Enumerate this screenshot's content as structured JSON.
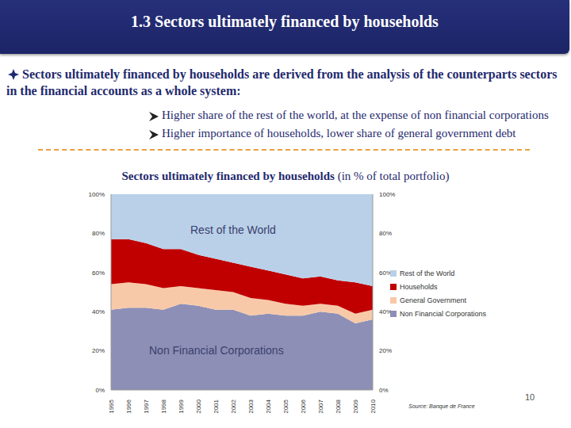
{
  "header": {
    "title": "1.3 Sectors ultimately financed by households"
  },
  "intro": "Sectors ultimately financed by households are derived from the analysis of the counterparts sectors in the financial accounts as a whole system:",
  "bullets": [
    "Higher share of the rest of the world, at the expense of non financial corporations",
    "Higher importance of households, lower share of general government debt"
  ],
  "page_number": "10",
  "chart_data": {
    "type": "area",
    "title": "Sectors ultimately financed by households",
    "subtitle": "(in % of total portfolio)",
    "source": "Source: Banque de France",
    "stacked": true,
    "grid": false,
    "legend": "right",
    "categories": [
      "1995",
      "1996",
      "1997",
      "1998",
      "1999",
      "2000",
      "2001",
      "2002",
      "2003",
      "2004",
      "2005",
      "2006",
      "2007",
      "2008",
      "2009",
      "2010"
    ],
    "series": [
      {
        "name": "Rest of the World",
        "color": "#b9d0e8",
        "values": [
          23,
          23,
          25,
          28,
          28,
          31,
          33,
          35,
          37,
          39,
          41,
          43,
          42,
          44,
          45,
          47
        ]
      },
      {
        "name": "Households",
        "color": "#c00000",
        "values": [
          23,
          22,
          21,
          20,
          19,
          17,
          16,
          15,
          16,
          15,
          15,
          14,
          14,
          13,
          16,
          12
        ]
      },
      {
        "name": "General Government",
        "color": "#f8c9a8",
        "values": [
          13,
          13,
          12,
          11,
          9,
          9,
          10,
          9,
          9,
          7,
          6,
          5,
          4,
          4,
          5,
          5
        ]
      },
      {
        "name": "Non Financial Corporations",
        "color": "#8d8fb6",
        "values": [
          41,
          42,
          42,
          41,
          44,
          43,
          41,
          41,
          38,
          39,
          38,
          38,
          40,
          39,
          34,
          36
        ]
      }
    ],
    "ylim": [
      0,
      100
    ],
    "yticks": [
      {
        "value": 0,
        "label": "0%"
      },
      {
        "value": 20,
        "label": "20%"
      },
      {
        "value": 40,
        "label": "40%"
      },
      {
        "value": 60,
        "label": "60%"
      },
      {
        "value": 80,
        "label": "80%"
      },
      {
        "value": 100,
        "label": "100%"
      }
    ],
    "y2lim": [
      0,
      100
    ],
    "y2ticks": [
      {
        "value": 0,
        "label": "0%"
      },
      {
        "value": 20,
        "label": "20%"
      },
      {
        "value": 40,
        "label": "40%"
      },
      {
        "value": 60,
        "label": "60%"
      },
      {
        "value": 80,
        "label": "80%"
      },
      {
        "value": 100,
        "label": "100%"
      }
    ],
    "annotations": [
      "Rest of the World",
      "Non Financial Corporations"
    ]
  }
}
